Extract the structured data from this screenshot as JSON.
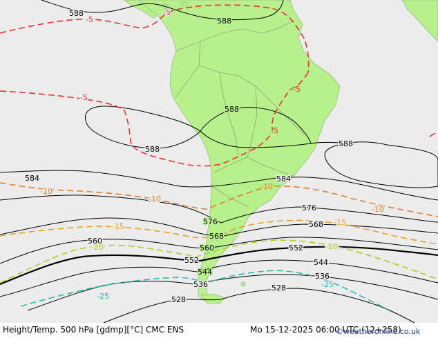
{
  "footer": {
    "title": "Height/Temp. 500 hPa [gdmp][°C] CMC ENS",
    "datetime": "Mo 15-12-2025 06:00 UTC (12+258)",
    "credit": "©weatheronline.co.uk"
  },
  "colors": {
    "ocean": "#ececec",
    "land": "#b8f08c",
    "height_contour": "#000000",
    "temp_minus5": "#e83030",
    "temp_minus10": "#e0802a",
    "temp_minus15": "#e8a020",
    "temp_minus20": "#a8d020",
    "temp_minus25": "#20c0a0"
  },
  "height_labels": [
    "588",
    "588",
    "588",
    "588",
    "588",
    "584",
    "584",
    "576",
    "576",
    "568",
    "568",
    "560",
    "560",
    "552",
    "552",
    "544",
    "544",
    "536",
    "536",
    "528",
    "528"
  ],
  "temp_labels": [
    "-5",
    "-5",
    "-5",
    "-5",
    "-5",
    "-10",
    "-10",
    "-10",
    "-10",
    "-15",
    "-15",
    "-20",
    "-20",
    "-25",
    "-25"
  ]
}
